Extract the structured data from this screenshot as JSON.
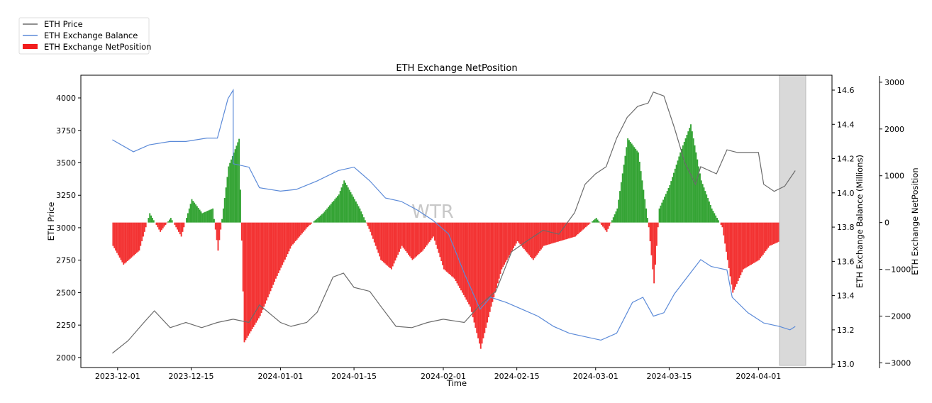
{
  "chart_data": {
    "type": "line",
    "title": "ETH Exchange NetPosition",
    "xlabel": "Time",
    "ylabel": "ETH Price",
    "ylabel_right": "ETH Exchange Balance (Millions)",
    "ylabel_right2": "ETH Exchange NetPosition",
    "watermark": "WTR",
    "legend": {
      "placement": "top-left",
      "entries": [
        "ETH Price",
        "ETH Exchange Balance",
        "ETH Exchange NetPosition"
      ]
    },
    "xlim": [
      "2023-11-24",
      "2024-04-15"
    ],
    "ylim": [
      1923,
      4175
    ],
    "ylim_right": [
      12.98,
      14.687
    ],
    "ylim_right2": [
      -3100,
      3150
    ],
    "x_ticks": [
      "2023-12-01",
      "2023-12-15",
      "2024-01-01",
      "2024-01-15",
      "2024-02-01",
      "2024-02-15",
      "2024-03-01",
      "2024-03-15",
      "2024-04-01"
    ],
    "y_ticks": [
      "2000",
      "2250",
      "2500",
      "2750",
      "3000",
      "3250",
      "3500",
      "3750",
      "4000"
    ],
    "y_ticks_right": [
      "13.0",
      "13.2",
      "13.4",
      "13.6",
      "13.8",
      "14.0",
      "14.2",
      "14.4",
      "14.6"
    ],
    "y_ticks_right2": [
      "−3000",
      "−2000",
      "−1000",
      "0",
      "1000",
      "2000",
      "3000"
    ],
    "highlight_range": [
      "2024-04-05",
      "2024-04-10"
    ],
    "colors": {
      "price": "#6b6b6b",
      "balance": "#5b8ad8",
      "positive": "#1f9a1f",
      "negative": "#f21d1d",
      "highlight": "#d9d9d9"
    },
    "series": [
      {
        "name": "ETH Price",
        "data": [
          [
            "2023-11-30",
            2033
          ],
          [
            "2023-12-03",
            2130
          ],
          [
            "2023-12-06",
            2270
          ],
          [
            "2023-12-08",
            2360
          ],
          [
            "2023-12-11",
            2230
          ],
          [
            "2023-12-14",
            2270
          ],
          [
            "2023-12-17",
            2230
          ],
          [
            "2023-12-20",
            2270
          ],
          [
            "2023-12-23",
            2295
          ],
          [
            "2023-12-26",
            2270
          ],
          [
            "2023-12-28",
            2405
          ],
          [
            "2024-01-01",
            2270
          ],
          [
            "2024-01-03",
            2240
          ],
          [
            "2024-01-06",
            2270
          ],
          [
            "2024-01-08",
            2350
          ],
          [
            "2024-01-11",
            2620
          ],
          [
            "2024-01-13",
            2650
          ],
          [
            "2024-01-15",
            2540
          ],
          [
            "2024-01-18",
            2510
          ],
          [
            "2024-01-20",
            2400
          ],
          [
            "2024-01-23",
            2240
          ],
          [
            "2024-01-26",
            2230
          ],
          [
            "2024-01-29",
            2270
          ],
          [
            "2024-02-01",
            2295
          ],
          [
            "2024-02-05",
            2270
          ],
          [
            "2024-02-08",
            2405
          ],
          [
            "2024-02-11",
            2510
          ],
          [
            "2024-02-14",
            2815
          ],
          [
            "2024-02-17",
            2900
          ],
          [
            "2024-02-20",
            2980
          ],
          [
            "2024-02-23",
            2950
          ],
          [
            "2024-02-26",
            3115
          ],
          [
            "2024-02-28",
            3335
          ],
          [
            "2024-03-01",
            3415
          ],
          [
            "2024-03-03",
            3470
          ],
          [
            "2024-03-05",
            3690
          ],
          [
            "2024-03-07",
            3850
          ],
          [
            "2024-03-09",
            3935
          ],
          [
            "2024-03-11",
            3960
          ],
          [
            "2024-03-12",
            4045
          ],
          [
            "2024-03-14",
            4015
          ],
          [
            "2024-03-16",
            3770
          ],
          [
            "2024-03-18",
            3500
          ],
          [
            "2024-03-20",
            3335
          ],
          [
            "2024-03-21",
            3470
          ],
          [
            "2024-03-24",
            3415
          ],
          [
            "2024-03-26",
            3600
          ],
          [
            "2024-03-28",
            3580
          ],
          [
            "2024-03-30",
            3580
          ],
          [
            "2024-04-01",
            3580
          ],
          [
            "2024-04-02",
            3335
          ],
          [
            "2024-04-04",
            3280
          ],
          [
            "2024-04-06",
            3320
          ],
          [
            "2024-04-08",
            3440
          ]
        ]
      },
      {
        "name": "ETH Exchange Balance",
        "axis": "right",
        "data": [
          [
            "2023-11-30",
            14.31
          ],
          [
            "2023-12-04",
            14.24
          ],
          [
            "2023-12-07",
            14.28
          ],
          [
            "2023-12-11",
            14.3
          ],
          [
            "2023-12-14",
            14.3
          ],
          [
            "2023-12-18",
            14.32
          ],
          [
            "2023-12-20",
            14.32
          ],
          [
            "2023-12-22",
            14.55
          ],
          [
            "2023-12-23",
            14.6
          ],
          [
            "2023-12-23",
            14.17
          ],
          [
            "2023-12-26",
            14.15
          ],
          [
            "2023-12-28",
            14.03
          ],
          [
            "2024-01-01",
            14.01
          ],
          [
            "2024-01-04",
            14.02
          ],
          [
            "2024-01-08",
            14.07
          ],
          [
            "2024-01-12",
            14.13
          ],
          [
            "2024-01-15",
            14.15
          ],
          [
            "2024-01-18",
            14.07
          ],
          [
            "2024-01-21",
            13.97
          ],
          [
            "2024-01-24",
            13.95
          ],
          [
            "2024-01-27",
            13.9
          ],
          [
            "2024-01-30",
            13.84
          ],
          [
            "2024-02-02",
            13.76
          ],
          [
            "2024-02-05",
            13.53
          ],
          [
            "2024-02-08",
            13.32
          ],
          [
            "2024-02-10",
            13.39
          ],
          [
            "2024-02-13",
            13.36
          ],
          [
            "2024-02-16",
            13.32
          ],
          [
            "2024-02-19",
            13.28
          ],
          [
            "2024-02-22",
            13.22
          ],
          [
            "2024-02-25",
            13.18
          ],
          [
            "2024-02-28",
            13.16
          ],
          [
            "2024-03-02",
            13.14
          ],
          [
            "2024-03-05",
            13.18
          ],
          [
            "2024-03-08",
            13.36
          ],
          [
            "2024-03-10",
            13.39
          ],
          [
            "2024-03-12",
            13.28
          ],
          [
            "2024-03-14",
            13.3
          ],
          [
            "2024-03-16",
            13.41
          ],
          [
            "2024-03-18",
            13.49
          ],
          [
            "2024-03-21",
            13.61
          ],
          [
            "2024-03-23",
            13.57
          ],
          [
            "2024-03-26",
            13.55
          ],
          [
            "2024-03-27",
            13.39
          ],
          [
            "2024-03-30",
            13.3
          ],
          [
            "2024-04-02",
            13.24
          ],
          [
            "2024-04-05",
            13.22
          ],
          [
            "2024-04-07",
            13.2
          ],
          [
            "2024-04-08",
            13.22
          ]
        ]
      },
      {
        "name": "ETH Exchange NetPosition",
        "axis": "right2",
        "type": "bar",
        "data": [
          [
            "2023-11-30",
            -500
          ],
          [
            "2023-12-02",
            -900
          ],
          [
            "2023-12-05",
            -600
          ],
          [
            "2023-12-07",
            200
          ],
          [
            "2023-12-09",
            -200
          ],
          [
            "2023-12-11",
            100
          ],
          [
            "2023-12-13",
            -300
          ],
          [
            "2023-12-15",
            500
          ],
          [
            "2023-12-17",
            200
          ],
          [
            "2023-12-19",
            300
          ],
          [
            "2023-12-20",
            -600
          ],
          [
            "2023-12-22",
            1200
          ],
          [
            "2023-12-24",
            1790
          ],
          [
            "2023-12-25",
            -2560
          ],
          [
            "2023-12-28",
            -2000
          ],
          [
            "2023-12-31",
            -1200
          ],
          [
            "2024-01-03",
            -500
          ],
          [
            "2024-01-06",
            -100
          ],
          [
            "2024-01-09",
            200
          ],
          [
            "2024-01-12",
            600
          ],
          [
            "2024-01-13",
            900
          ],
          [
            "2024-01-16",
            300
          ],
          [
            "2024-01-18",
            -200
          ],
          [
            "2024-01-20",
            -800
          ],
          [
            "2024-01-22",
            -1000
          ],
          [
            "2024-01-24",
            -500
          ],
          [
            "2024-01-26",
            -800
          ],
          [
            "2024-01-28",
            -600
          ],
          [
            "2024-01-30",
            -300
          ],
          [
            "2024-02-01",
            -1000
          ],
          [
            "2024-02-03",
            -1200
          ],
          [
            "2024-02-06",
            -1800
          ],
          [
            "2024-02-08",
            -2700
          ],
          [
            "2024-02-10",
            -1800
          ],
          [
            "2024-02-12",
            -1000
          ],
          [
            "2024-02-15",
            -400
          ],
          [
            "2024-02-18",
            -800
          ],
          [
            "2024-02-20",
            -500
          ],
          [
            "2024-02-23",
            -400
          ],
          [
            "2024-02-26",
            -300
          ],
          [
            "2024-02-28",
            -100
          ],
          [
            "2024-03-01",
            100
          ],
          [
            "2024-03-03",
            -200
          ],
          [
            "2024-03-05",
            300
          ],
          [
            "2024-03-07",
            1800
          ],
          [
            "2024-03-09",
            1500
          ],
          [
            "2024-03-11",
            -100
          ],
          [
            "2024-03-12",
            -1300
          ],
          [
            "2024-03-13",
            300
          ],
          [
            "2024-03-15",
            800
          ],
          [
            "2024-03-17",
            1500
          ],
          [
            "2024-03-19",
            2100
          ],
          [
            "2024-03-21",
            900
          ],
          [
            "2024-03-23",
            300
          ],
          [
            "2024-03-25",
            -100
          ],
          [
            "2024-03-27",
            -1500
          ],
          [
            "2024-03-29",
            -1000
          ],
          [
            "2024-04-01",
            -800
          ],
          [
            "2024-04-03",
            -500
          ],
          [
            "2024-04-05",
            -400
          ],
          [
            "2024-04-06",
            0
          ],
          [
            "2024-04-08",
            -300
          ]
        ]
      }
    ]
  }
}
